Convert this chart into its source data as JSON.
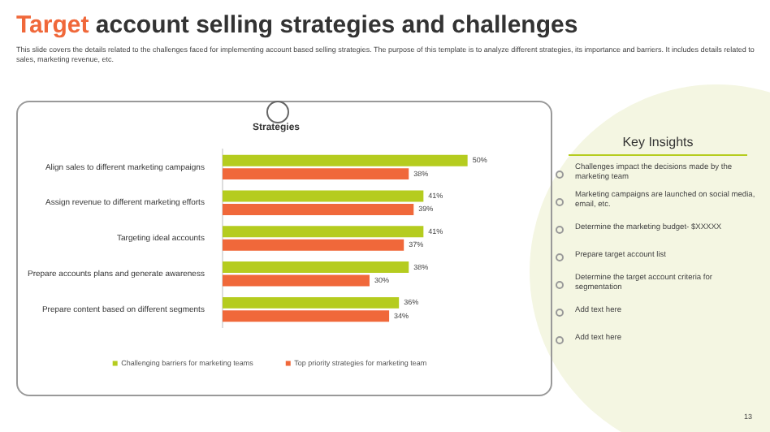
{
  "chart_data": {
    "type": "bar",
    "orientation": "horizontal",
    "title": "Target account selling strategies and challenges",
    "subtitle": "This slide covers the details related to the challenges faced for implementing account based selling strategies. The purpose of this template is to analyze different strategies, its importance and barriers. It includes details related to sales, marketing revenue, etc.",
    "categories": [
      "Align sales to different marketing campaigns",
      "Assign revenue to different marketing efforts",
      "Targeting ideal accounts",
      "Prepare accounts plans and generate awareness",
      "Prepare content based on different segments"
    ],
    "series": [
      {
        "name": "Challenging barriers for marketing teams",
        "color": "#b5cc1f",
        "values": [
          50,
          41,
          41,
          38,
          36
        ],
        "value_labels": [
          "50%",
          "41%",
          "41%",
          "38%",
          "36%"
        ]
      },
      {
        "name": "Top priority strategies for marketing team",
        "color": "#f0683a",
        "values": [
          38,
          39,
          37,
          30,
          34
        ],
        "value_labels": [
          "38%",
          "39%",
          "37%",
          "30%",
          "34%"
        ]
      }
    ],
    "legend": "bottom",
    "annotations": [
      "Strategies",
      "Key Insights",
      "Challenges impact the decisions made by the marketing team",
      "Marketing campaigns are launched on social media, email, etc.",
      "Determine the marketing budget- $XXXXX",
      "Prepare target account list",
      "Determine the target account criteria for segmentation",
      "Add text here",
      "Add text here",
      "13"
    ]
  }
}
